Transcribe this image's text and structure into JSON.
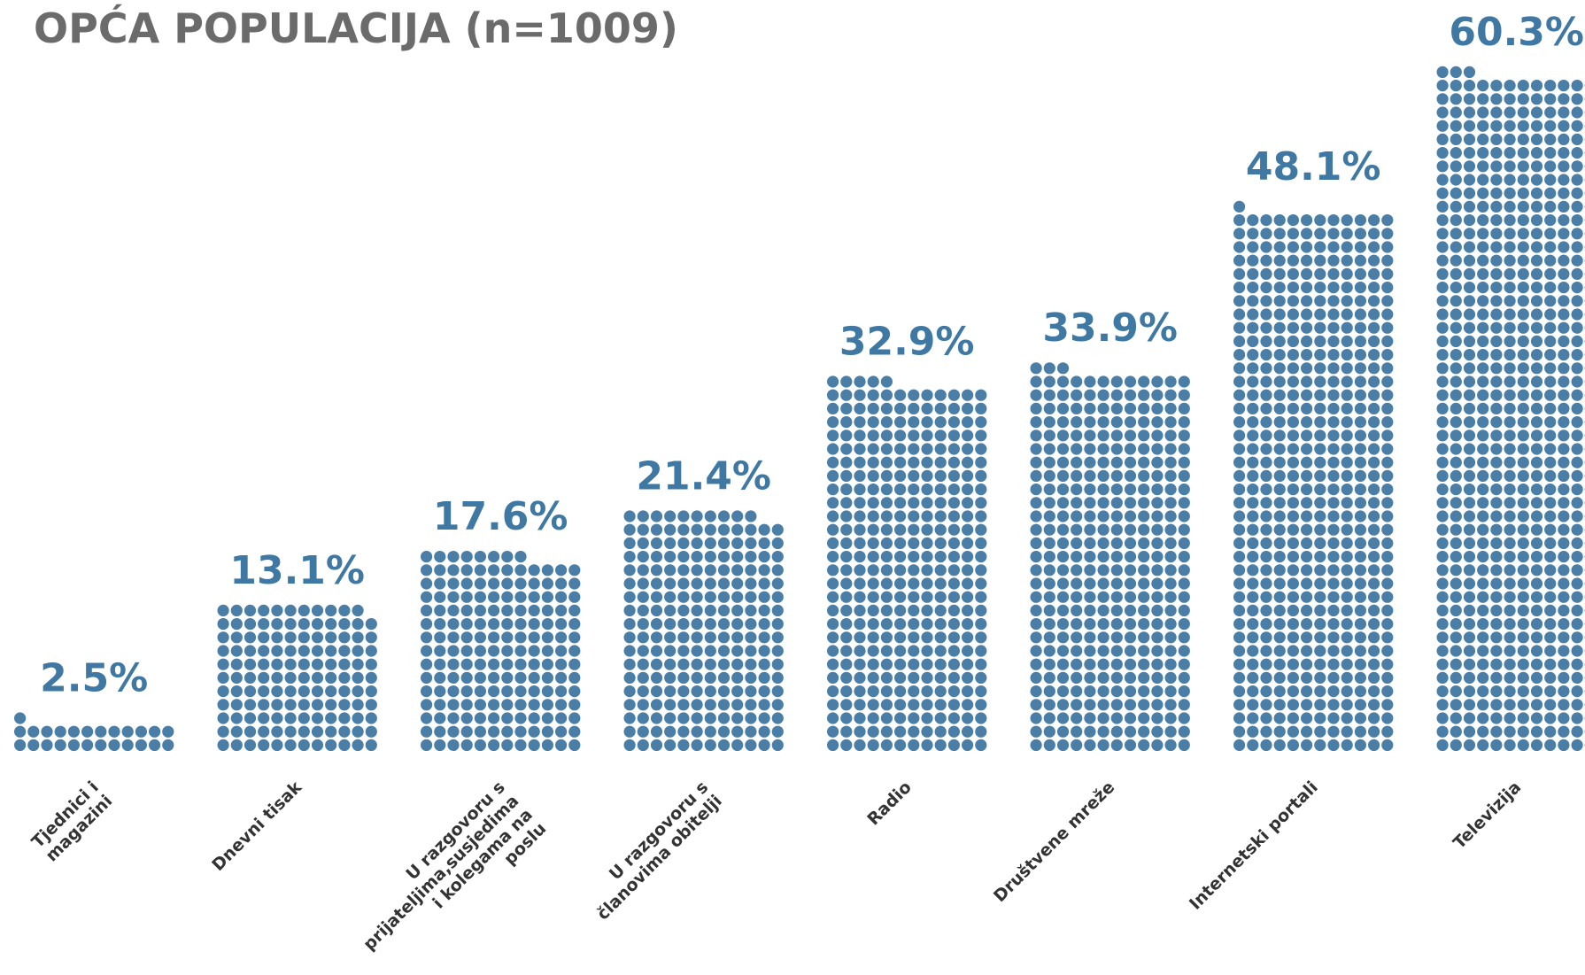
{
  "chart_data": {
    "type": "dot-column",
    "title": "OPĆA POPULACIJA (n=1009)",
    "categories": [
      "Tjednici i magazini",
      "Dnevni tisak",
      "U razgovoru s prijateljima,susjedima i kolegama na poslu",
      "U razgovoru s članovima obitelji",
      "Radio",
      "Društvene mreže",
      "Internetski portali",
      "Televizija"
    ],
    "values": [
      2.5,
      13.1,
      17.6,
      21.4,
      32.9,
      33.9,
      48.1,
      60.3
    ],
    "value_labels": [
      "2.5%",
      "13.1%",
      "17.6%",
      "21.4%",
      "32.9%",
      "33.9%",
      "48.1%",
      "60.3%"
    ],
    "color": "#4a7ea6"
  }
}
